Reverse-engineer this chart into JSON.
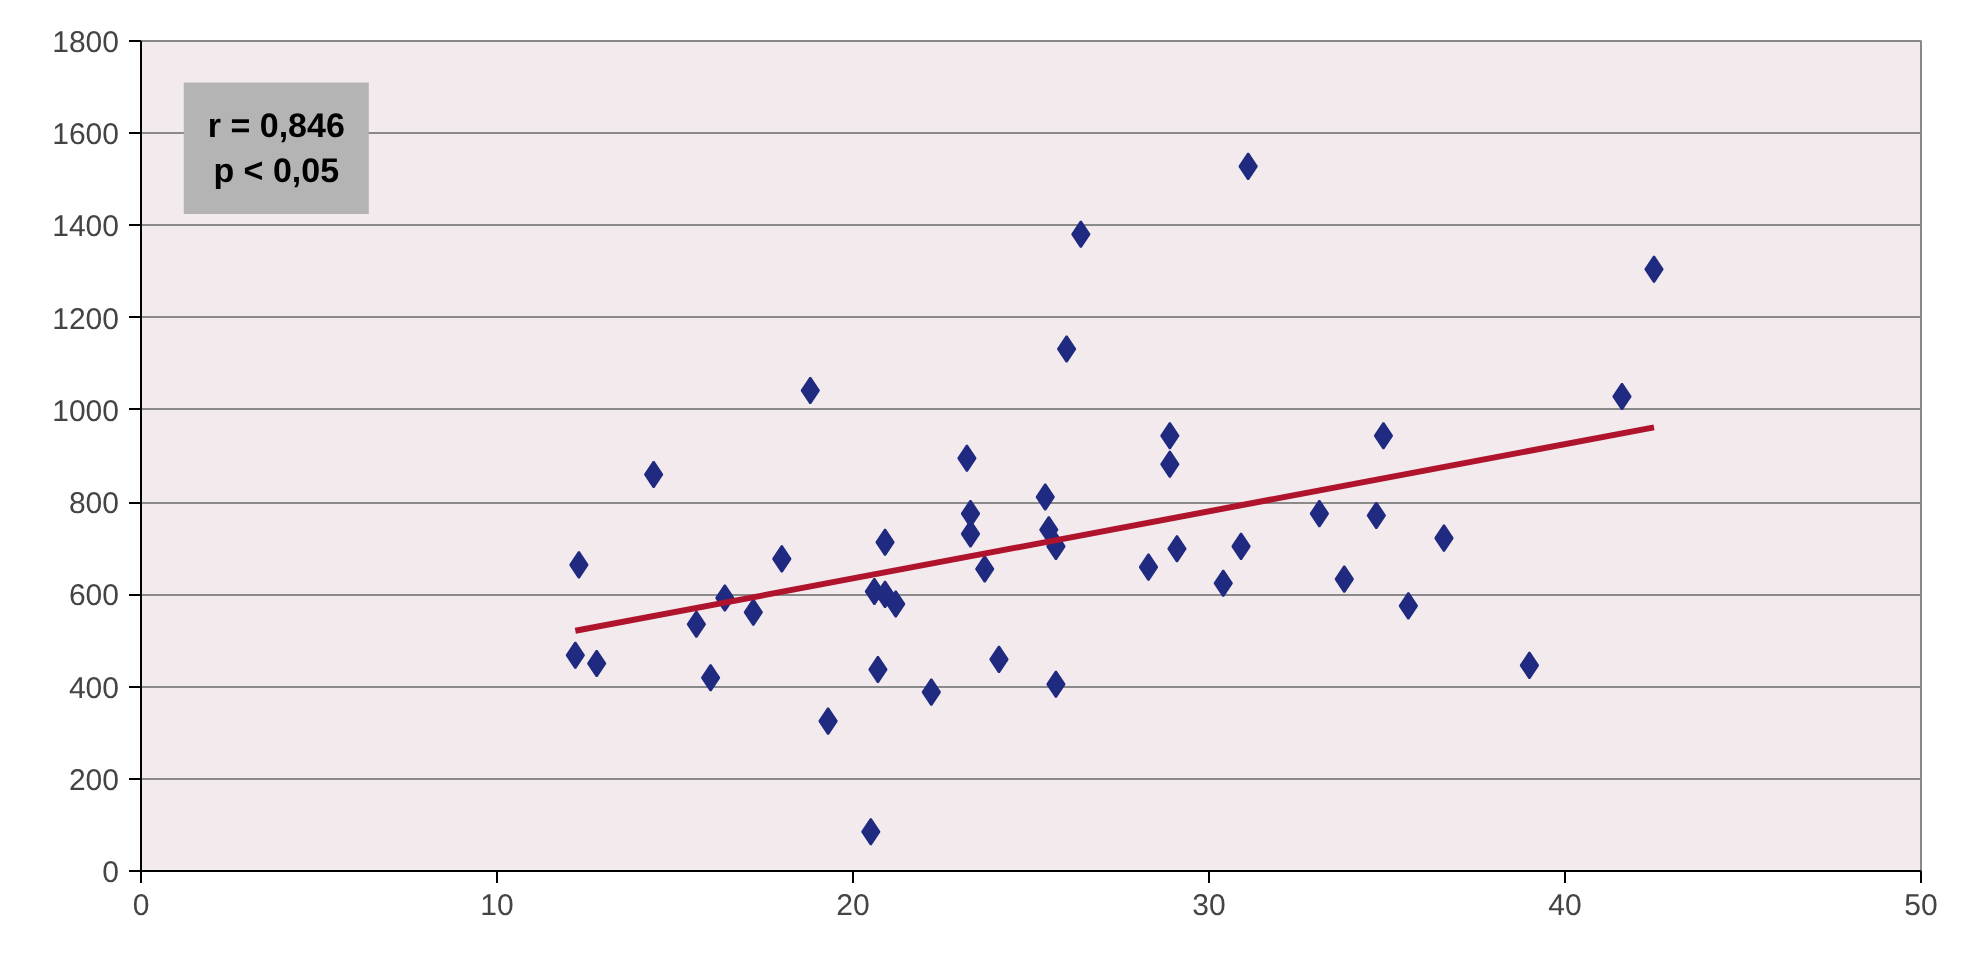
{
  "chart_data": {
    "type": "scatter",
    "annotations": [
      "r = 0,846\np < 0,05"
    ],
    "xlim": [
      0,
      50
    ],
    "xticks": [
      0,
      10,
      20,
      30,
      40,
      50
    ],
    "ylim": [
      0,
      1800
    ],
    "yticks": [
      0,
      200,
      400,
      600,
      800,
      1000,
      1200,
      1400,
      1600,
      1800
    ],
    "grid": "y",
    "series": [
      {
        "marker": "diamond",
        "color": "#1f2a80",
        "x": [
          12.2,
          12.3,
          12.8,
          14.4,
          15.6,
          16.0,
          16.4,
          17.2,
          18.0,
          18.8,
          19.3,
          20.6,
          20.5,
          20.7,
          20.9,
          20.9,
          21.2,
          22.2,
          23.2,
          23.3,
          23.3,
          23.7,
          24.1,
          25.4,
          25.5,
          25.7,
          25.7,
          26.0,
          26.4,
          28.3,
          28.9,
          28.9,
          29.1,
          30.4,
          30.9,
          31.1,
          33.1,
          33.8,
          34.7,
          34.9,
          35.6,
          36.6,
          39.0,
          41.6,
          42.5
        ],
        "values": [
          468,
          664,
          450,
          860,
          535,
          419,
          592,
          561,
          677,
          1042,
          325,
          606,
          85,
          437,
          713,
          600,
          579,
          388,
          895,
          775,
          731,
          655,
          459,
          811,
          740,
          704,
          405,
          1132,
          1381,
          659,
          944,
          882,
          699,
          624,
          704,
          1528,
          775,
          633,
          771,
          944,
          575,
          722,
          446,
          1029,
          1305
        ]
      },
      {
        "type": "line",
        "color": "#b0142c",
        "x": [
          12.2,
          42.5
        ],
        "values": [
          521,
          962
        ]
      }
    ]
  }
}
